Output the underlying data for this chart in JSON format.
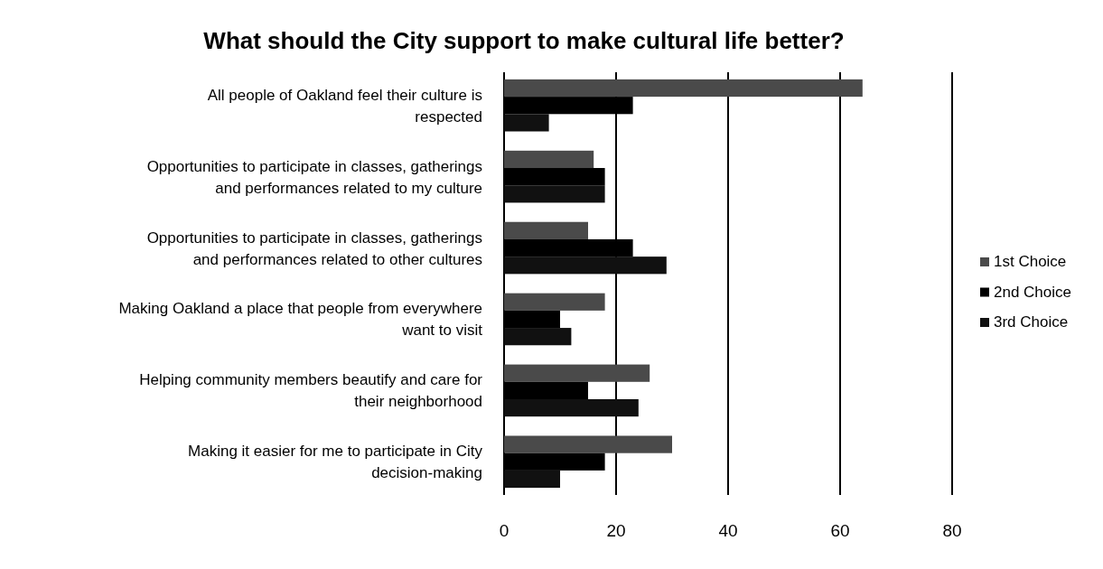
{
  "chart_data": {
    "type": "bar",
    "orientation": "horizontal",
    "title": "What should the City support to make cultural life better?",
    "categories": [
      "All people of Oakland feel their culture is respected",
      "Opportunities to participate in classes, gatherings and performances related to my culture",
      "Opportunities to participate in classes, gatherings and performances related to other cultures",
      "Making Oakland a place that people from everywhere want to visit",
      "Helping community members beautify and care for their neighborhood",
      "Making it easier for me to participate in City decision-making"
    ],
    "series": [
      {
        "name": "1st Choice",
        "color": "#4a4a4a",
        "values": [
          64,
          16,
          15,
          18,
          26,
          30
        ]
      },
      {
        "name": "2nd Choice",
        "color": "#000000",
        "values": [
          23,
          18,
          23,
          10,
          15,
          18
        ]
      },
      {
        "name": "3rd Choice",
        "color": "#111111",
        "values": [
          8,
          18,
          29,
          12,
          24,
          10
        ]
      }
    ],
    "xlim": [
      0,
      80
    ],
    "xticks": [
      0,
      20,
      40,
      60,
      80
    ],
    "grid": "x",
    "legend": "right"
  }
}
